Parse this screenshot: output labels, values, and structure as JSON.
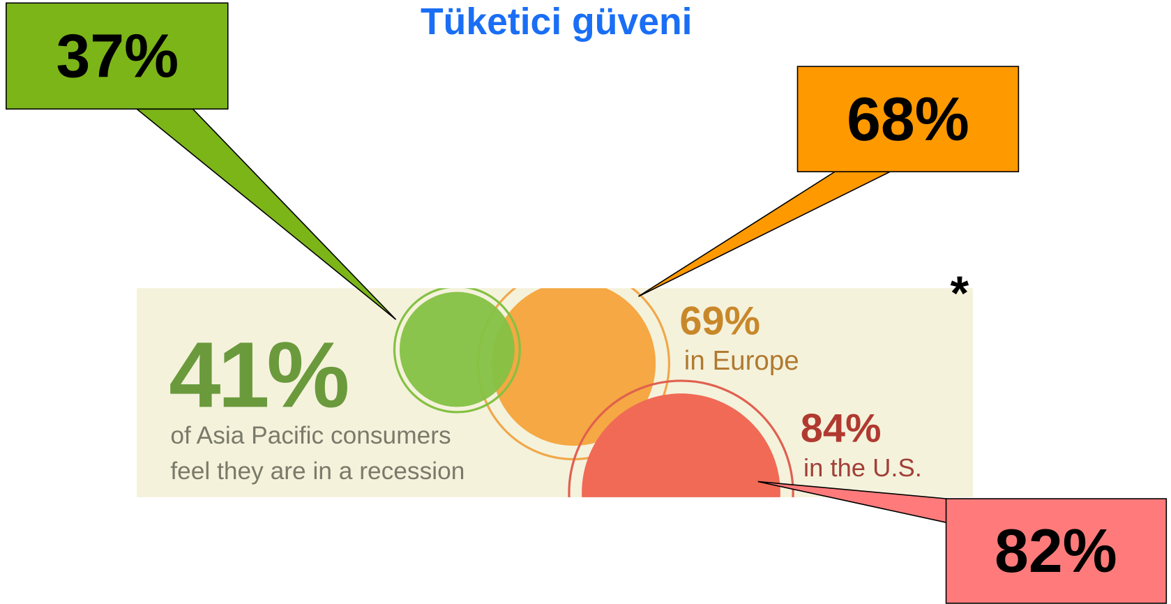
{
  "title": "Tüketici güveni",
  "callouts": [
    {
      "label": "37%"
    },
    {
      "label": "68%"
    },
    {
      "label": "82%"
    }
  ],
  "infographic": {
    "headline": "41%",
    "caption": [
      "of Asia Pacific consumers",
      "feel they are in a recession"
    ],
    "europe": {
      "value": "69%",
      "label": "in Europe"
    },
    "us": {
      "value": "84%",
      "label": "in the U.S."
    }
  },
  "footnote": "*"
}
